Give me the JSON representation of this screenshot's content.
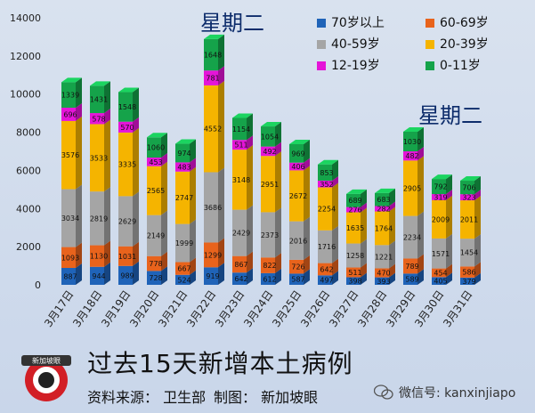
{
  "chart_data": {
    "type": "stacked-bar-3d",
    "title": "过去15天新增本土病例",
    "ylim": [
      0,
      14000
    ],
    "yticks": [
      0,
      2000,
      4000,
      6000,
      8000,
      10000,
      12000,
      14000
    ],
    "categories": [
      "3月17日",
      "3月18日",
      "3月19日",
      "3月20日",
      "3月21日",
      "3月22日",
      "3月23日",
      "3月24日",
      "3月25日",
      "3月26日",
      "3月27日",
      "3月28日",
      "3月29日",
      "3月30日",
      "3月31日"
    ],
    "series": [
      {
        "name": "70岁以上",
        "color": "#1f63b8",
        "values": [
          887,
          944,
          989,
          728,
          524,
          919,
          642,
          612,
          587,
          497,
          398,
          393,
          589,
          405,
          379
        ]
      },
      {
        "name": "60-69岁",
        "color": "#e8631c",
        "values": [
          1093,
          1130,
          1031,
          778,
          667,
          1299,
          867,
          822,
          726,
          642,
          511,
          470,
          789,
          454,
          586
        ]
      },
      {
        "name": "40-59岁",
        "color": "#a5a5a5",
        "values": [
          3034,
          2819,
          2629,
          2149,
          1999,
          3686,
          2429,
          2373,
          2016,
          1716,
          1258,
          1221,
          2234,
          1571,
          1454
        ]
      },
      {
        "name": "20-39岁",
        "color": "#f5b400",
        "values": [
          3576,
          3533,
          3335,
          2565,
          2747,
          4552,
          3148,
          2951,
          2672,
          2254,
          1635,
          1764,
          2905,
          2009,
          2011
        ]
      },
      {
        "name": "12-19岁",
        "color": "#e514d8",
        "values": [
          696,
          578,
          570,
          453,
          483,
          781,
          511,
          492,
          406,
          352,
          276,
          282,
          482,
          319,
          323
        ]
      },
      {
        "name": "0-11岁",
        "color": "#15a34a",
        "values": [
          1339,
          1431,
          1548,
          1060,
          974,
          1648,
          1154,
          1054,
          969,
          853,
          689,
          683,
          1030,
          792,
          706
        ]
      }
    ],
    "legend": [
      "70岁以上",
      "60-69岁",
      "40-59岁",
      "20-39岁",
      "12-19岁",
      "0-11岁"
    ],
    "annotations": [
      "星期二",
      "星期二"
    ]
  },
  "footer": {
    "title": "过去15天新增本土病例",
    "source": "资料来源： 卫生部",
    "credit": "制图： 新加坡眼",
    "wechat": "微信号: kanxinjiapo",
    "logo_text": "新加坡眼"
  }
}
